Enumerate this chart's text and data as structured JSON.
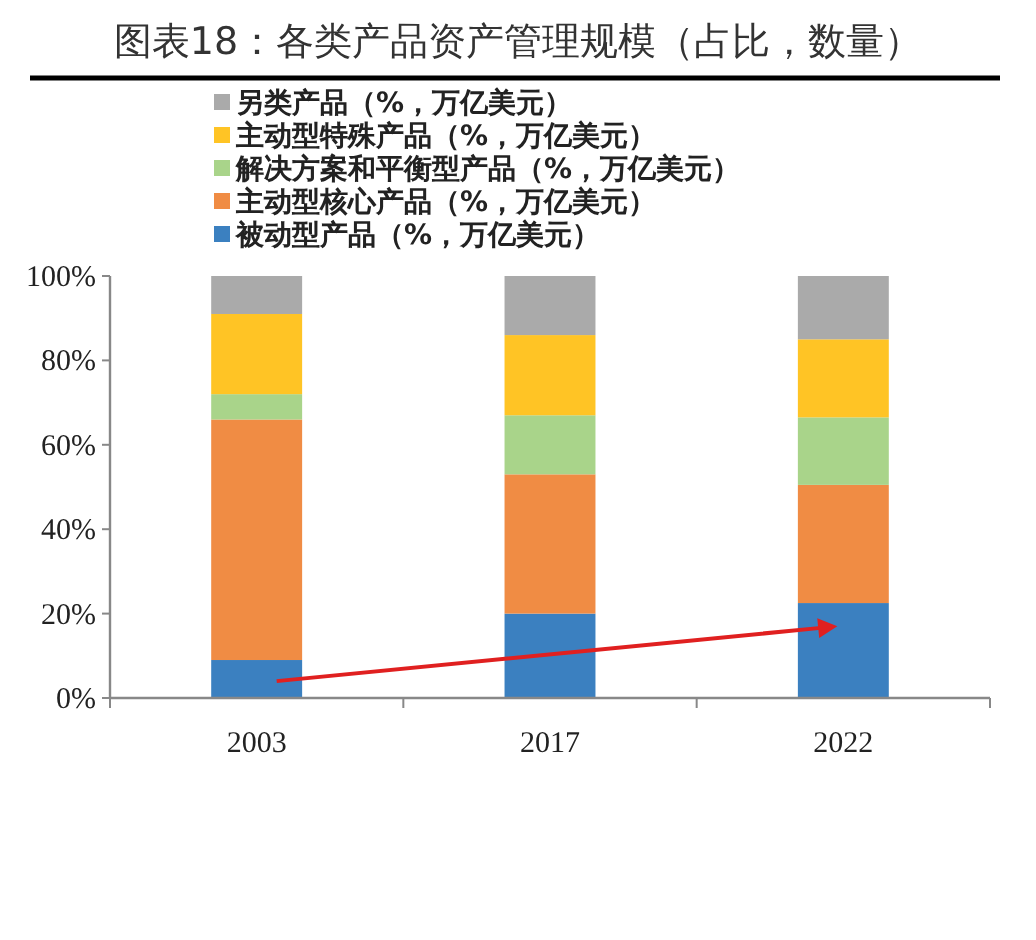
{
  "chart_data": {
    "type": "bar",
    "stacked": true,
    "title": "图表18：各类产品资产管理规模（占比，数量）",
    "categories": [
      "2003",
      "2017",
      "2022"
    ],
    "series": [
      {
        "name": "被动型产品（%，万亿美元）",
        "color": "#3b80c0",
        "values": [
          9,
          20,
          22.5
        ]
      },
      {
        "name": "主动型核心产品（%，万亿美元）",
        "color": "#f08c44",
        "values": [
          57,
          33,
          28
        ]
      },
      {
        "name": "解决方案和平衡型产品（%，万亿美元）",
        "color": "#a9d48a",
        "values": [
          6,
          14,
          16
        ]
      },
      {
        "name": "主动型特殊产品（%，万亿美元）",
        "color": "#ffc425",
        "values": [
          19,
          19,
          18.5
        ]
      },
      {
        "name": "另类产品（%，万亿美元）",
        "color": "#aaaaaa",
        "values": [
          9,
          14,
          15
        ]
      }
    ],
    "ylim": [
      0,
      100
    ],
    "yticks": [
      {
        "value": 0,
        "label": "0%"
      },
      {
        "value": 20,
        "label": "20%"
      },
      {
        "value": 40,
        "label": "40%"
      },
      {
        "value": 60,
        "label": "60%"
      },
      {
        "value": 80,
        "label": "80%"
      },
      {
        "value": 100,
        "label": "100%"
      }
    ],
    "grid": false,
    "legend": "top"
  }
}
